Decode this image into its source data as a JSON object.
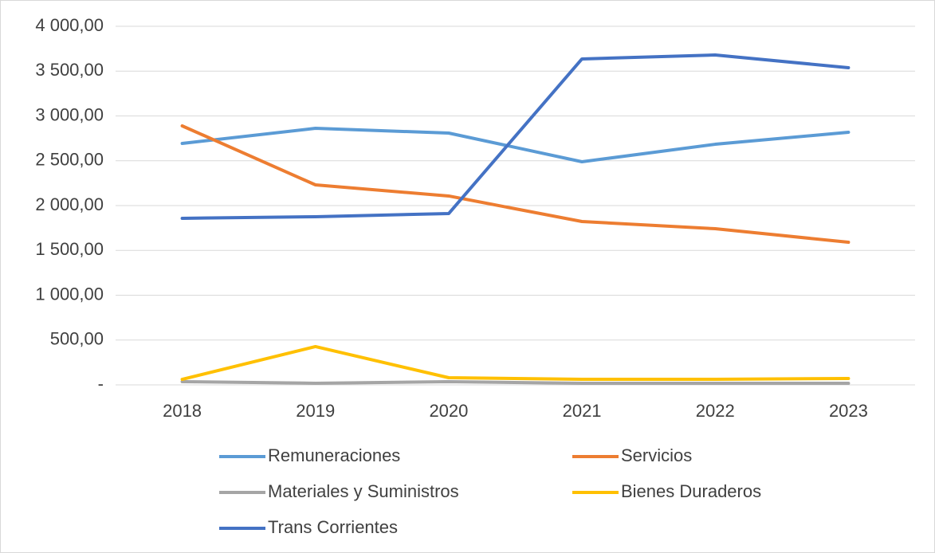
{
  "chart_data": {
    "type": "line",
    "categories": [
      "2018",
      "2019",
      "2020",
      "2021",
      "2022",
      "2023"
    ],
    "series": [
      {
        "name": "Remuneraciones",
        "color": "#5b9bd5",
        "values": [
          2693,
          2862,
          2809,
          2489,
          2684,
          2818
        ]
      },
      {
        "name": "Servicios",
        "color": "#ed7d31",
        "values": [
          2889,
          2231,
          2107,
          1822,
          1742,
          1591
        ]
      },
      {
        "name": "Materiales y Suministros",
        "color": "#a5a5a5",
        "values": [
          36,
          18,
          36,
          18,
          18,
          18
        ]
      },
      {
        "name": "Bienes Duraderos",
        "color": "#ffc000",
        "values": [
          62,
          427,
          80,
          62,
          62,
          71
        ]
      },
      {
        "name": "Trans Corrientes",
        "color": "#4472c4",
        "values": [
          1858,
          1876,
          1911,
          3636,
          3680,
          3538
        ]
      }
    ],
    "ylim": [
      0,
      4000
    ],
    "yticks": [
      {
        "value": 0,
        "label": "-"
      },
      {
        "value": 500,
        "label": "500,00"
      },
      {
        "value": 1000,
        "label": "1 000,00"
      },
      {
        "value": 1500,
        "label": "1 500,00"
      },
      {
        "value": 2000,
        "label": "2 000,00"
      },
      {
        "value": 2500,
        "label": "2 500,00"
      },
      {
        "value": 3000,
        "label": "3 000,00"
      },
      {
        "value": 3500,
        "label": "3 500,00"
      },
      {
        "value": 4000,
        "label": "4 000,00"
      }
    ],
    "grid": true,
    "legend": "bottom"
  }
}
